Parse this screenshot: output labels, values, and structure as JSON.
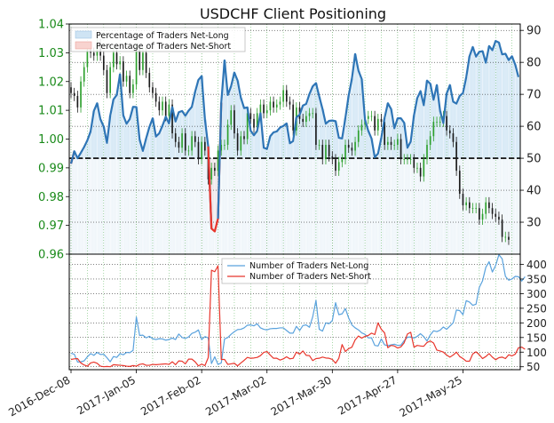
{
  "chart_data": {
    "type": "line",
    "title": "USDCHF Client Positioning",
    "date_ticks": [
      "2016-Dec-08",
      "2017-Jan-05",
      "2017-Feb-02",
      "2017-Mar-02",
      "2017-Mar-30",
      "2017-Apr-27",
      "2017-May-25"
    ],
    "price_panel": {
      "left_axis": {
        "label": "",
        "ticks": [
          "0.96",
          "0.97",
          "0.98",
          "0.99",
          "1.00",
          "1.01",
          "1.02",
          "1.03",
          "1.04"
        ],
        "range": [
          0.96,
          1.04
        ],
        "color": "#1a8a1a"
      },
      "right_axis": {
        "label": "",
        "ticks": [
          "30",
          "40",
          "50",
          "60",
          "70",
          "80",
          "90"
        ],
        "range": [
          20,
          92
        ]
      },
      "reference_line": 50,
      "legend": [
        "Percentage of Traders Net-Long",
        "Percentage of Traders Net-Short"
      ],
      "legend_position": "top-left",
      "candles_close": [
        1.016,
        1.015,
        1.011,
        1.02,
        1.025,
        1.031,
        1.03,
        1.029,
        1.033,
        1.029,
        1.024,
        1.016,
        1.025,
        1.03,
        1.026,
        1.027,
        1.02,
        1.022,
        1.016,
        1.019,
        1.031,
        1.024,
        1.03,
        1.023,
        1.018,
        1.016,
        1.013,
        1.01,
        1.013,
        1.008,
        1.012,
        1.002,
        0.999,
        0.997,
        1.002,
        0.996,
        0.996,
        1.001,
        0.999,
        0.993,
        0.999,
        0.996,
        0.986,
        0.99,
        0.989,
        0.996,
        0.998,
        0.998,
        1.005,
        1.01,
        1.002,
        0.996,
        1.001,
        1.0,
        1.009,
        1.007,
        1.004,
        1.009,
        1.012,
        1.009,
        1.01,
        1.013,
        1.011,
        1.012,
        1.013,
        1.017,
        1.013,
        1.012,
        1.003,
        1.011,
        1.007,
        1.006,
        1.008,
        1.009,
        1.009,
        0.998,
        0.998,
        0.993,
        0.998,
        0.994,
        0.993,
        0.989,
        0.992,
        0.993,
        0.998,
        0.997,
        0.996,
        0.999,
        1.003,
        1.005,
        1.007,
        1.008,
        1.008,
        1.003,
        1.007,
        1.006,
        0.998,
        0.999,
        0.998,
        0.998,
        1.0,
        0.993,
        0.993,
        0.993,
        0.993,
        0.99,
        0.99,
        0.987,
        0.993,
        0.998,
        1.001,
        1.006,
        1.006,
        1.006,
        1.008,
        1.003,
        1.002,
        0.999,
        0.989,
        0.981,
        0.977,
        0.978,
        0.976,
        0.976,
        0.976,
        0.972,
        0.974,
        0.978,
        0.976,
        0.974,
        0.973,
        0.972,
        0.966,
        0.966,
        0.965
      ],
      "series": [
        {
          "name": "Percentage of Traders Net-Long",
          "color": "#2e75b6",
          "values": [
            48.3,
            52.2,
            50.0,
            51.7,
            53.5,
            55.6,
            58.4,
            64.8,
            67.2,
            62.2,
            59.9,
            54.8,
            63.3,
            68.4,
            69.8,
            76.3,
            63.4,
            60.8,
            62.3,
            66.1,
            66.0,
            55.8,
            52.3,
            56.2,
            59.8,
            62.5,
            56.8,
            57.8,
            60.2,
            63.0,
            60.9,
            66.0,
            61.5,
            64.4,
            64.8,
            63.3,
            64.9,
            66.1,
            70.8,
            74.5,
            75.7,
            62.2,
            53.7,
            28.0,
            27.1,
            31.1,
            67.4,
            80.6,
            69.8,
            72.5,
            76.8,
            74.3,
            68.9,
            65.7,
            65.9,
            58.6,
            57.2,
            58.6,
            64.1,
            53.3,
            52.9,
            56.9,
            58.1,
            58.4,
            59.6,
            60.1,
            60.9,
            54.7,
            55.4,
            62.8,
            63.6,
            66.5,
            67.0,
            70.1,
            72.5,
            73.5,
            69.3,
            65.4,
            60.8,
            61.7,
            61.8,
            61.6,
            56.4,
            56.2,
            62.6,
            69.6,
            74.9,
            82.6,
            77.4,
            74.8,
            62.1,
            58.6,
            56.2,
            50.3,
            51.5,
            56.4,
            62.6,
            67.2,
            65.4,
            59.4,
            62.5,
            62.5,
            61.1,
            53.3,
            55.2,
            63.4,
            68.8,
            71.0,
            66.6,
            74.3,
            73.3,
            68.3,
            72.9,
            64.8,
            61.0,
            70.2,
            72.9,
            67.7,
            67.1,
            69.5,
            70.4,
            75.3,
            81.9,
            84.8,
            81.8,
            83.3,
            83.5,
            79.9,
            85.1,
            83.8,
            86.7,
            86.2,
            82.5,
            82.7,
            80.7,
            81.9,
            79.3,
            75.4
          ]
        }
      ]
    },
    "count_panel": {
      "right_axis": {
        "label": "",
        "ticks": [
          "50",
          "100",
          "150",
          "200",
          "250",
          "300",
          "350",
          "400"
        ],
        "range": [
          40,
          435
        ]
      },
      "legend": [
        "Number of Traders Net-Long",
        "Number of Traders Net-Short"
      ],
      "legend_position": "top-center",
      "series": [
        {
          "name": "Number of Traders Net-Long",
          "color": "#5aa2dd",
          "values": [
            96,
            93,
            66,
            67,
            70,
            84,
            95,
            89,
            99,
            92,
            93,
            81,
            67,
            85,
            82,
            95,
            91,
            99,
            98,
            106,
            220,
            157,
            158,
            149,
            154,
            146,
            143,
            146,
            145,
            141,
            143,
            148,
            143,
            162,
            150,
            147,
            152,
            164,
            168,
            176,
            143,
            153,
            149,
            61,
            84,
            58,
            63,
            145,
            150,
            161,
            170,
            177,
            178,
            183,
            192,
            193,
            190,
            197,
            183,
            178,
            176,
            180,
            181,
            181,
            183,
            183,
            174,
            165,
            165,
            188,
            174,
            191,
            193,
            185,
            221,
            277,
            178,
            172,
            200,
            197,
            208,
            269,
            228,
            231,
            249,
            217,
            193,
            183,
            176,
            166,
            161,
            149,
            149,
            123,
            121,
            145,
            125,
            122,
            125,
            127,
            123,
            124,
            139,
            151,
            152,
            148,
            154,
            163,
            153,
            138,
            159,
            173,
            170,
            175,
            186,
            178,
            189,
            200,
            244,
            242,
            228,
            276,
            271,
            260,
            264,
            321,
            344,
            390,
            409,
            374,
            396,
            433,
            419,
            359,
            346,
            350,
            359,
            358,
            343,
            358
          ]
        },
        {
          "name": "Number of Traders Net-Short",
          "color": "#e8362c",
          "values": [
            75,
            77,
            78,
            63,
            56,
            52,
            63,
            66,
            62,
            52,
            50,
            51,
            50,
            57,
            56,
            55,
            54,
            52,
            51,
            54,
            52,
            58,
            60,
            55,
            55,
            58,
            57,
            58,
            59,
            60,
            58,
            67,
            57,
            70,
            69,
            60,
            76,
            76,
            67,
            53,
            59,
            54,
            81,
            380,
            375,
            395,
            75,
            75,
            58,
            60,
            62,
            53,
            63,
            72,
            82,
            79,
            80,
            82,
            88,
            99,
            102,
            90,
            79,
            79,
            73,
            77,
            84,
            77,
            79,
            100,
            93,
            104,
            89,
            88,
            71,
            78,
            79,
            83,
            80,
            79,
            75,
            62,
            79,
            126,
            102,
            112,
            117,
            142,
            155,
            148,
            154,
            157,
            165,
            160,
            200,
            178,
            166,
            115,
            123,
            121,
            114,
            118,
            132,
            162,
            168,
            117,
            123,
            121,
            120,
            133,
            138,
            131,
            107,
            104,
            100,
            90,
            83,
            90,
            100,
            85,
            78,
            69,
            69,
            94,
            101,
            91,
            78,
            85,
            95,
            83,
            74,
            81,
            83,
            78,
            91,
            87,
            93,
            115,
            117,
            110
          ]
        }
      ]
    },
    "colors": {
      "net_long_fill": "#cfe4f4",
      "net_short_fill": "#f8d3cf",
      "bull_candle": "#2ca02c",
      "bear_candle": "#1a1a1a"
    }
  }
}
